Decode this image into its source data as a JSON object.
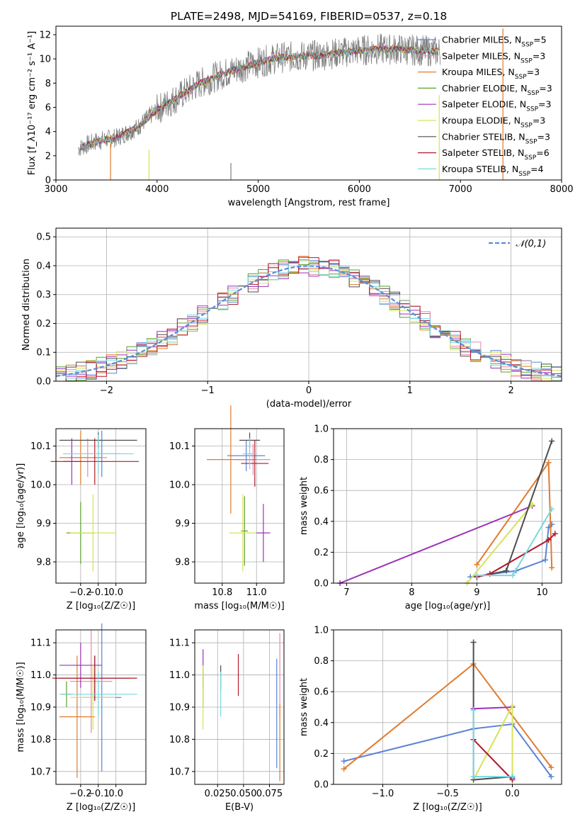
{
  "colors": {
    "Chabrier MILES": "#5b84d8",
    "Salpeter MILES": "#e58aa8",
    "Kroupa MILES": "#e07b2e",
    "Chabrier ELODIE": "#5aa02c",
    "Salpeter ELODIE": "#9b30b8",
    "Kroupa ELODIE": "#d7e35a",
    "Chabrier STELIB": "#4d4d4d",
    "Salpeter STELIB": "#b2182b",
    "Kroupa STELIB": "#78d8e0"
  },
  "chart_data": [
    {
      "type": "line",
      "title": "PLATE=2498, MJD=54169, FIBERID=0537, z=0.18",
      "xlabel": "wavelength [Angstrom, rest frame]",
      "ylabel": "Flux [f_λ10⁻¹⁷ erg cm⁻² s⁻¹ A⁻¹]",
      "xlim": [
        3000,
        8000
      ],
      "ylim": [
        0,
        12.7
      ],
      "xticks": [
        "3000",
        "4000",
        "5000",
        "6000",
        "7000",
        "8000"
      ],
      "yticks": [
        "0",
        "2",
        "4",
        "6",
        "8",
        "10",
        "12"
      ],
      "grid": false,
      "legend_position": "right",
      "legend": [
        {
          "name": "Chabrier MILES",
          "nssp": "5"
        },
        {
          "name": "Salpeter MILES",
          "nssp": "3"
        },
        {
          "name": "Kroupa MILES",
          "nssp": "3"
        },
        {
          "name": "Chabrier ELODIE",
          "nssp": "3"
        },
        {
          "name": "Salpeter ELODIE",
          "nssp": "3"
        },
        {
          "name": "Kroupa ELODIE",
          "nssp": "3"
        },
        {
          "name": "Chabrier STELIB",
          "nssp": "3"
        },
        {
          "name": "Salpeter STELIB",
          "nssp": "6"
        },
        {
          "name": "Kroupa STELIB",
          "nssp": "4"
        }
      ],
      "continuum_x": [
        3220,
        3400,
        3600,
        3800,
        4000,
        4200,
        4400,
        4600,
        4800,
        5000,
        5200,
        5400,
        5600,
        5800,
        6000,
        6200,
        6400,
        6600,
        6800
      ],
      "continuum_y": [
        2.6,
        3.2,
        3.5,
        4.3,
        5.8,
        6.8,
        7.9,
        8.6,
        9.2,
        9.7,
        10.1,
        10.2,
        10.3,
        10.5,
        10.7,
        10.8,
        10.8,
        10.7,
        10.6
      ],
      "observed_color": "#808080"
    },
    {
      "type": "histogram",
      "xlabel": "(data-model)/error",
      "ylabel": "Normed distribution",
      "xlim": [
        -2.5,
        2.5
      ],
      "ylim": [
        0,
        0.53
      ],
      "xticks": [
        "−2",
        "−1",
        "0",
        "1",
        "2"
      ],
      "yticks": [
        "0.0",
        "0.1",
        "0.2",
        "0.3",
        "0.4",
        "0.5"
      ],
      "grid": true,
      "bin_width": 0.1,
      "legend": [
        {
          "name": "𝒩(0,1)",
          "style": "dashed",
          "color": "#5b8bd9"
        }
      ]
    },
    {
      "type": "scatter",
      "xlabel": "Z [log₁₀(Z/Z☉)]",
      "ylabel": "age  [log₁₀(age/yr)]",
      "xlim": [
        -0.34,
        0.17
      ],
      "ylim": [
        9.745,
        10.145
      ],
      "xticks": [
        "−0.2",
        "−0.1",
        "0.0"
      ],
      "yticks": [
        "9.8",
        "9.9",
        "10.0",
        "10.1"
      ],
      "grid": true,
      "points": [
        {
          "model": "Chabrier MILES",
          "x": -0.08,
          "xerr": 0.1,
          "y": 10.08,
          "yerr": 0.06
        },
        {
          "model": "Salpeter MILES",
          "x": -0.16,
          "xerr": 0.11,
          "y": 10.07,
          "yerr": 0.05
        },
        {
          "model": "Kroupa MILES",
          "x": -0.2,
          "xerr": 0.12,
          "y": 10.07,
          "yerr": 0.07
        },
        {
          "model": "Chabrier ELODIE",
          "x": -0.2,
          "xerr": 0.08,
          "y": 9.875,
          "yerr": 0.08
        },
        {
          "model": "Salpeter ELODIE",
          "x": -0.25,
          "xerr": 0.05,
          "y": 10.06,
          "yerr": 0.06
        },
        {
          "model": "Kroupa ELODIE",
          "x": -0.13,
          "xerr": 0.13,
          "y": 9.875,
          "yerr": 0.1
        },
        {
          "model": "Chabrier STELIB",
          "x": -0.1,
          "xerr": 0.22,
          "y": 10.115,
          "yerr": 0.02
        },
        {
          "model": "Salpeter STELIB",
          "x": -0.12,
          "xerr": 0.25,
          "y": 10.06,
          "yerr": 0.06
        },
        {
          "model": "Kroupa STELIB",
          "x": -0.1,
          "xerr": 0.2,
          "y": 10.08,
          "yerr": 0.05
        }
      ]
    },
    {
      "type": "scatter",
      "xlabel": "mass [log₁₀(M/M☉)]",
      "ylabel": "",
      "xlim": [
        10.64,
        11.16
      ],
      "ylim": [
        9.745,
        10.145
      ],
      "xticks": [
        "10.8",
        "11.0"
      ],
      "yticks": [
        "9.8",
        "9.9",
        "10.0",
        "10.1"
      ],
      "grid": true,
      "points": [
        {
          "model": "Chabrier MILES",
          "x": 10.94,
          "xerr": 0.11,
          "y": 10.075,
          "yerr": 0.04
        },
        {
          "model": "Salpeter MILES",
          "x": 10.98,
          "xerr": 0.1,
          "y": 10.065,
          "yerr": 0.04
        },
        {
          "model": "Kroupa MILES",
          "x": 10.85,
          "xerr": 0.14,
          "y": 10.065,
          "yerr": 0.14
        },
        {
          "model": "Chabrier ELODIE",
          "x": 10.93,
          "xerr": 0.02,
          "y": 9.88,
          "yerr": 0.09
        },
        {
          "model": "Salpeter ELODIE",
          "x": 11.04,
          "xerr": 0.04,
          "y": 9.875,
          "yerr": 0.075
        },
        {
          "model": "Kroupa ELODIE",
          "x": 10.92,
          "xerr": 0.08,
          "y": 9.875,
          "yerr": 0.1
        },
        {
          "model": "Chabrier STELIB",
          "x": 10.96,
          "xerr": 0.06,
          "y": 10.115,
          "yerr": 0.02
        },
        {
          "model": "Salpeter STELIB",
          "x": 10.99,
          "xerr": 0.08,
          "y": 10.055,
          "yerr": 0.06
        },
        {
          "model": "Kroupa STELIB",
          "x": 10.96,
          "xerr": 0.04,
          "y": 10.08,
          "yerr": 0.04
        }
      ]
    },
    {
      "type": "line",
      "xlabel": "age  [log₁₀(age/yr)]",
      "ylabel": "mass weight",
      "xlim": [
        6.8,
        10.3
      ],
      "ylim": [
        0,
        1
      ],
      "xticks": [
        "7",
        "8",
        "9",
        "10"
      ],
      "yticks": [
        "0.0",
        "0.2",
        "0.4",
        "0.6",
        "0.8",
        "1.0"
      ],
      "grid": true,
      "series": [
        {
          "model": "Chabrier MILES",
          "x": [
            8.9,
            9.6,
            10.05,
            10.1,
            10.15
          ],
          "y": [
            0.04,
            0.08,
            0.15,
            0.36,
            0.38
          ]
        },
        {
          "model": "Kroupa MILES",
          "x": [
            9.0,
            10.1,
            10.15
          ],
          "y": [
            0.12,
            0.78,
            0.1
          ]
        },
        {
          "model": "Salpeter ELODIE",
          "x": [
            6.9,
            9.85
          ],
          "y": [
            0.0,
            0.5
          ]
        },
        {
          "model": "Kroupa ELODIE",
          "x": [
            8.85,
            9.85
          ],
          "y": [
            0.0,
            0.51
          ]
        },
        {
          "model": "Chabrier STELIB",
          "x": [
            9.0,
            9.45,
            10.15
          ],
          "y": [
            0.04,
            0.08,
            0.92
          ]
        },
        {
          "model": "Salpeter STELIB",
          "x": [
            9.0,
            9.2,
            10.1,
            10.2
          ],
          "y": [
            0.04,
            0.06,
            0.28,
            0.32
          ]
        },
        {
          "model": "Kroupa STELIB",
          "x": [
            9.0,
            9.55,
            10.15
          ],
          "y": [
            0.05,
            0.05,
            0.48
          ]
        }
      ]
    },
    {
      "type": "scatter",
      "xlabel": "Z [log₁₀(Z/Z☉)]",
      "ylabel": "mass [log₁₀(M/M☉)]",
      "xlim": [
        -0.34,
        0.17
      ],
      "ylim": [
        10.66,
        11.14
      ],
      "xticks": [
        "−0.2",
        "−0.1",
        "0.0"
      ],
      "yticks": [
        "10.7",
        "10.8",
        "10.9",
        "11.0",
        "11.1"
      ],
      "grid": true,
      "points": [
        {
          "model": "Chabrier MILES",
          "x": -0.08,
          "xerr": 0.11,
          "y": 10.93,
          "yerr": 0.23
        },
        {
          "model": "Salpeter MILES",
          "x": -0.14,
          "xerr": 0.12,
          "y": 10.98,
          "yerr": 0.16
        },
        {
          "model": "Kroupa MILES",
          "x": -0.22,
          "xerr": 0.1,
          "y": 10.87,
          "yerr": 0.19
        },
        {
          "model": "Chabrier ELODIE",
          "x": -0.28,
          "xerr": 0.03,
          "y": 10.94,
          "yerr": 0.04
        },
        {
          "model": "Salpeter ELODIE",
          "x": -0.2,
          "xerr": 0.12,
          "y": 11.03,
          "yerr": 0.07
        },
        {
          "model": "Kroupa ELODIE",
          "x": -0.13,
          "xerr": 0.13,
          "y": 10.93,
          "yerr": 0.1
        },
        {
          "model": "Chabrier STELIB",
          "x": -0.12,
          "xerr": 0.2,
          "y": 10.99,
          "yerr": 0.07
        },
        {
          "model": "Salpeter STELIB",
          "x": -0.12,
          "xerr": 0.24,
          "y": 10.99,
          "yerr": 0.07
        },
        {
          "model": "Kroupa STELIB",
          "x": -0.1,
          "xerr": 0.22,
          "y": 10.94,
          "yerr": 0.07
        }
      ]
    },
    {
      "type": "scatter",
      "xlabel": "E(B-V)",
      "ylabel": "",
      "xlim": [
        0.003,
        0.089
      ],
      "ylim": [
        10.66,
        11.14
      ],
      "xticks": [
        "0.025",
        "0.050",
        "0.075"
      ],
      "yticks": [
        "10.7",
        "10.8",
        "10.9",
        "11.0",
        "11.1"
      ],
      "grid": true,
      "points": [
        {
          "model": "Chabrier MILES",
          "x": 0.082,
          "xerr": 0,
          "y": 10.88,
          "yerr": 0.17
        },
        {
          "model": "Salpeter MILES",
          "x": 0.085,
          "xerr": 0,
          "y": 11.0,
          "yerr": 0.13
        },
        {
          "model": "Kroupa MILES",
          "x": 0.085,
          "xerr": 0,
          "y": 10.79,
          "yerr": 0.12
        },
        {
          "model": "Chabrier ELODIE",
          "x": 0.011,
          "xerr": 0,
          "y": 10.95,
          "yerr": 0.05
        },
        {
          "model": "Salpeter ELODIE",
          "x": 0.011,
          "xerr": 0,
          "y": 11.02,
          "yerr": 0.06
        },
        {
          "model": "Kroupa ELODIE",
          "x": 0.011,
          "xerr": 0,
          "y": 10.93,
          "yerr": 0.1
        },
        {
          "model": "Chabrier STELIB",
          "x": 0.028,
          "xerr": 0,
          "y": 10.99,
          "yerr": 0.04
        },
        {
          "model": "Salpeter STELIB",
          "x": 0.045,
          "xerr": 0,
          "y": 11.0,
          "yerr": 0.065
        },
        {
          "model": "Kroupa STELIB",
          "x": 0.028,
          "xerr": 0,
          "y": 10.94,
          "yerr": 0.07
        }
      ]
    },
    {
      "type": "line",
      "xlabel": "Z [log₁₀(Z/Z☉)]",
      "ylabel": "mass weight",
      "xlim": [
        -1.38,
        0.38
      ],
      "ylim": [
        0,
        1
      ],
      "xticks": [
        "−1.0",
        "−0.5",
        "0.0"
      ],
      "yticks": [
        "0.0",
        "0.2",
        "0.4",
        "0.6",
        "0.8",
        "1.0"
      ],
      "grid": true,
      "series": [
        {
          "model": "Chabrier MILES",
          "x": [
            -1.3,
            -0.3,
            0.0,
            0.3
          ],
          "y": [
            0.15,
            0.36,
            0.39,
            0.05
          ]
        },
        {
          "model": "Kroupa MILES",
          "x": [
            -1.3,
            -0.3,
            0.3
          ],
          "y": [
            0.1,
            0.78,
            0.11
          ]
        },
        {
          "model": "Salpeter ELODIE",
          "x": [
            -0.3,
            0.0,
            0.0
          ],
          "y": [
            0.49,
            0.5,
            0.04
          ]
        },
        {
          "model": "Kroupa ELODIE",
          "x": [
            -0.3,
            0.0,
            0.0
          ],
          "y": [
            0.03,
            0.51,
            0.03
          ]
        },
        {
          "model": "Chabrier STELIB",
          "x": [
            -0.3,
            -0.3,
            0.0
          ],
          "y": [
            0.92,
            0.03,
            0.05
          ]
        },
        {
          "model": "Salpeter STELIB",
          "x": [
            -0.3,
            0.0
          ],
          "y": [
            0.29,
            0.03
          ]
        },
        {
          "model": "Kroupa STELIB",
          "x": [
            -0.3,
            -0.3,
            0.0
          ],
          "y": [
            0.48,
            0.05,
            0.05
          ]
        }
      ]
    }
  ]
}
